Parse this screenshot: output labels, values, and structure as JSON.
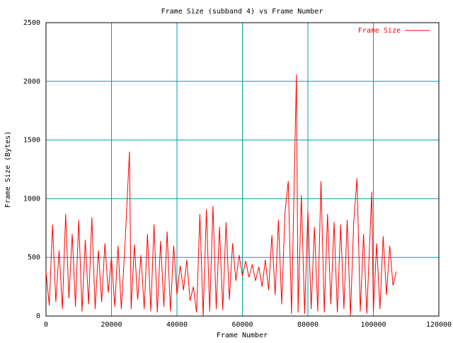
{
  "chart_data": {
    "type": "line",
    "title": "Frame Size (subband 4) vs Frame Number",
    "x_label": "Frame Number",
    "y_label": "Frame Size (Bytes)",
    "xlim": [
      0,
      120000
    ],
    "xticks": [
      0,
      20000,
      40000,
      60000,
      80000,
      100000,
      120000
    ],
    "ylim": [
      0,
      2500
    ],
    "yticks": [
      0,
      500,
      1000,
      1500,
      2000,
      2500
    ],
    "grid": true,
    "legend": "top-right",
    "x": [
      0,
      1000,
      2000,
      3000,
      4000,
      5000,
      6000,
      7000,
      8000,
      9000,
      10000,
      11000,
      12000,
      13000,
      14000,
      15000,
      16000,
      17000,
      18000,
      19000,
      20000,
      21000,
      22000,
      23000,
      24000,
      25500,
      26000,
      27000,
      28000,
      29000,
      30000,
      31000,
      32000,
      33000,
      34000,
      35000,
      36000,
      37000,
      38000,
      39000,
      40000,
      41000,
      42000,
      43000,
      44000,
      45000,
      46000,
      47000,
      48000,
      49000,
      50000,
      51000,
      52000,
      53000,
      54000,
      55000,
      56000,
      57000,
      58000,
      59000,
      60000,
      61000,
      62000,
      63000,
      64000,
      65000,
      66000,
      67000,
      68000,
      69000,
      70000,
      71000,
      72000,
      73000,
      74000,
      75000,
      76500,
      77000,
      78000,
      79000,
      80000,
      81000,
      82000,
      83000,
      84000,
      85000,
      86000,
      87000,
      88000,
      89000,
      90000,
      91000,
      92000,
      93000,
      94000,
      95000,
      96000,
      97000,
      98000,
      99500,
      100000,
      101000,
      102000,
      103000,
      104000,
      105000,
      106000,
      107000
    ],
    "series": [
      {
        "name": "Frame Size",
        "color": "#ff0000",
        "values": [
          380,
          90,
          780,
          120,
          560,
          60,
          870,
          150,
          700,
          80,
          820,
          40,
          650,
          100,
          840,
          60,
          560,
          120,
          620,
          200,
          500,
          80,
          600,
          60,
          540,
          1400,
          60,
          610,
          140,
          520,
          60,
          700,
          40,
          780,
          30,
          640,
          80,
          720,
          40,
          600,
          180,
          430,
          220,
          480,
          130,
          250,
          30,
          870,
          0,
          910,
          40,
          940,
          60,
          760,
          50,
          800,
          140,
          620,
          300,
          520,
          340,
          470,
          330,
          440,
          300,
          420,
          250,
          480,
          220,
          690,
          180,
          820,
          100,
          880,
          1150,
          20,
          2060,
          30,
          1030,
          20,
          900,
          60,
          760,
          40,
          1150,
          30,
          870,
          100,
          800,
          30,
          780,
          60,
          820,
          0,
          800,
          1175,
          40,
          700,
          20,
          1060,
          40,
          620,
          60,
          680,
          180,
          600,
          260,
          380
        ]
      }
    ]
  }
}
